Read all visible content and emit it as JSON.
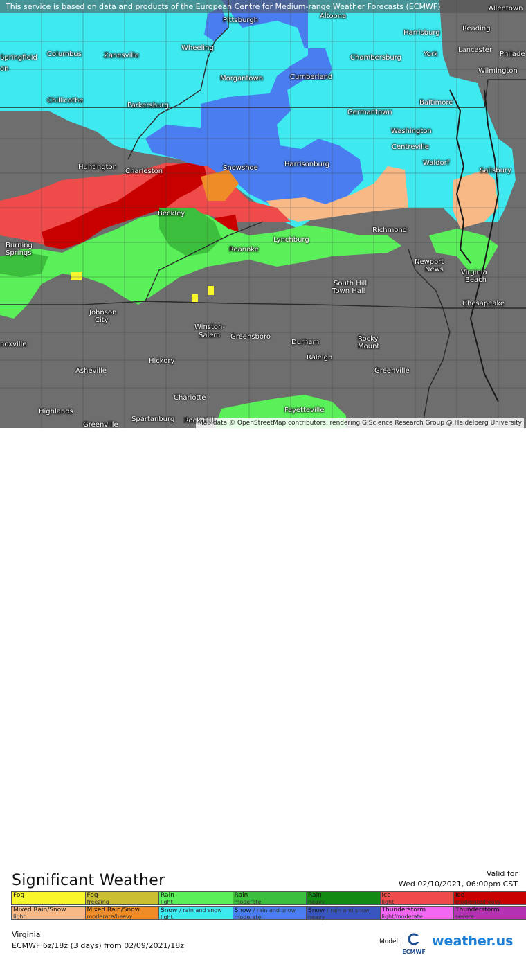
{
  "banner": "This service is based on data and products of the European Centre for Medium-range Weather Forecasts (ECMWF)",
  "attribution": "Map data © OpenStreetMap contributors, rendering GIScience Research Group @ Heidelberg University",
  "cities": {
    "altoona": "Altoona",
    "allentown": "Allentown",
    "pittsburgh": "Pittsburgh",
    "harrisburg": "Harrisburg",
    "reading": "Reading",
    "springfield": "Springfield",
    "columbus": "Columbus",
    "zanesville": "Zanesville",
    "wheeling": "Wheeling",
    "chambersburg": "Chambersburg",
    "york": "York",
    "lancaster": "Lancaster",
    "philade": "Philade",
    "wilmington": "Wilmington",
    "morgantown": "Morgantown",
    "cumberland": "Cumberland",
    "chillicothe": "Chillicothe",
    "parkersburg": "Parkersburg",
    "baltimore": "Baltimore",
    "germantown": "Germantown",
    "washington": "Washington",
    "centreville": "Centreville",
    "waldorf": "Waldorf",
    "salisbury": "Salisbury",
    "huntington": "Huntington",
    "charleston": "Charleston",
    "snowshoe": "Snowshoe",
    "harrisonburg": "Harrisonburg",
    "beckley": "Beckley",
    "richmond": "Richmond",
    "lynchburg": "Lynchburg",
    "roanoke": "Roanoke",
    "burning": "Burning",
    "springs": "Springs",
    "newport": "Newport",
    "news": "News",
    "virginia": "Virginia",
    "beach": "Beach",
    "southhill": "South Hill",
    "townhall": "Town Hall",
    "chesapeake": "Chesapeake",
    "johnson": "Johnson",
    "city": "City",
    "winston": "Winston-",
    "salem": "Salem",
    "greensboro": "Greensboro",
    "durham": "Durham",
    "rocky": "Rocky",
    "mount": "Mount",
    "knoxville": "noxville",
    "raleigh": "Raleigh",
    "hickory": "Hickory",
    "asheville": "Asheville",
    "greenville": "Greenville",
    "charlotte": "Charlotte",
    "highlands": "Highlands",
    "spartanburg": "Spartanburg",
    "rockhill": "Rock Hill",
    "fayetteville": "Fayetteville",
    "greenville2": "Greenville",
    "on": "on"
  },
  "legend": {
    "title": "Significant Weather",
    "valid_label": "Valid for",
    "valid_time": "Wed 02/10/2021, 06:00pm CST",
    "items": [
      {
        "label": "Fog",
        "sub": "",
        "color": "#f7f72b"
      },
      {
        "label": "Fog",
        "sub": "freezing",
        "color": "#c9bf30"
      },
      {
        "label": "Rain",
        "sub": "light",
        "color": "#5af05a"
      },
      {
        "label": "Rain",
        "sub": "moderate",
        "color": "#3cbf3c"
      },
      {
        "label": "Rain",
        "sub": "heavy",
        "color": "#138a13"
      },
      {
        "label": "Ice",
        "sub": "light",
        "color": "#f04b4b"
      },
      {
        "label": "Ice",
        "sub": "moderate/heavy",
        "color": "#c80000"
      },
      {
        "label": "Mixed Rain/Snow",
        "sub": "light",
        "color": "#f8b987"
      },
      {
        "label": "Mixed Rain/Snow",
        "sub": "moderate/heavy",
        "color": "#f08c28"
      },
      {
        "label": "Snow",
        "sub": "/ rain and snow",
        "sub2": "light",
        "color": "#3ee9f0"
      },
      {
        "label": "Snow",
        "sub": "/ rain and snow",
        "sub2": "moderate",
        "color": "#4a7ef0"
      },
      {
        "label": "Snow",
        "sub": "/ rain and snow",
        "sub2": "heavy",
        "color": "#3a55c0"
      },
      {
        "label": "Thunderstorm",
        "sub": "light/moderate",
        "color": "#f266f2"
      },
      {
        "label": "Thunderstorm",
        "sub": "severe",
        "color": "#b431b4"
      }
    ]
  },
  "region": "Virginia",
  "model_run": "ECMWF 6z/18z (3 days) from 02/09/2021/18z",
  "model_label": "Model:",
  "ecmwf_logo": "ECMWF",
  "brand": "weather.us"
}
